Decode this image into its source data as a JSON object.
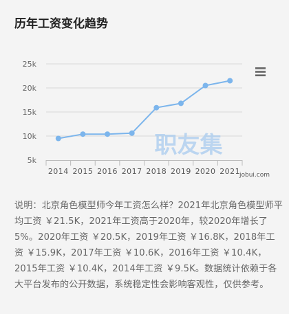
{
  "title": "历年工资变化趋势",
  "icons": {
    "menu": "hamburger-menu-icon"
  },
  "watermark": {
    "text": "职友集",
    "site": "jobui.com"
  },
  "colors": {
    "line": "#7cb5ec",
    "watermark": "#a9cbef",
    "grid": "#d9d9d9"
  },
  "chart_data": {
    "type": "line",
    "categories": [
      "2014",
      "2015",
      "2016",
      "2017",
      "2018",
      "2019",
      "2020",
      "2021"
    ],
    "series": [
      {
        "values": [
          9.5,
          10.4,
          10.4,
          10.6,
          15.9,
          16.8,
          20.5,
          21.5
        ]
      }
    ],
    "yticks": [
      "5k",
      "10k",
      "15k",
      "20k",
      "25k"
    ],
    "ylim": [
      5,
      25
    ],
    "grid": true,
    "legend": "none"
  },
  "description": "说明：北京角色模型师今年工资怎么样？2021年北京角色模型师平均工资 ￥21.5K，2021年工资高于2020年，较2020年增长了5%。2020年工资 ￥20.5K，2019年工资 ￥16.8K，2018年工资 ￥15.9K，2017年工资 ￥10.6K，2016年工资 ￥10.4K，2015年工资 ￥10.4K，2014年工资 ￥9.5K。数据统计依赖于各大平台发布的公开数据，系统稳定性会影响客观性，仅供参考。"
}
